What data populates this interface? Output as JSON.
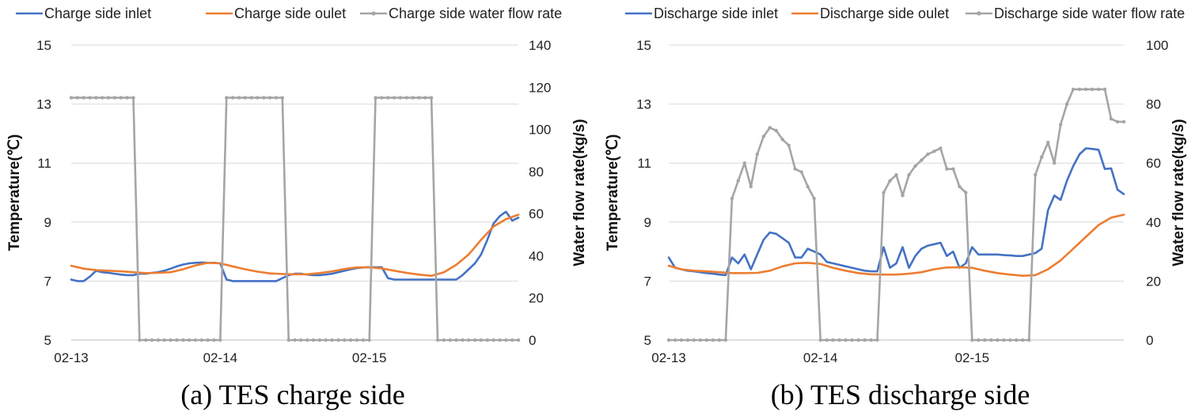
{
  "colors": {
    "inlet": "#4472C4",
    "outlet": "#ED7D31",
    "flow": "#A5A5A5",
    "grid": "#D9D9D9"
  },
  "chart_data": [
    {
      "type": "line",
      "caption": "(a) TES charge side",
      "ylabel": "Temperature(℃)",
      "y2label": "Water flow rate(kg/s)",
      "ylim": [
        5,
        15
      ],
      "yticks": [
        5,
        7,
        9,
        11,
        13,
        15
      ],
      "y2lim": [
        0,
        140
      ],
      "y2ticks": [
        0,
        20,
        40,
        60,
        80,
        100,
        120,
        140
      ],
      "xlabels": [
        "02-13",
        "02-14",
        "02-15"
      ],
      "xlabel_pos": [
        0,
        24,
        48
      ],
      "legend_position": "top",
      "grid": true,
      "series": [
        {
          "name": "Charge side inlet",
          "key": "inlet",
          "axis": "left",
          "markers": false,
          "x": [
            0,
            1,
            2,
            3,
            4,
            5,
            6,
            7,
            8,
            9,
            10,
            11,
            12,
            13,
            14,
            15,
            16,
            17,
            18,
            19,
            20,
            21,
            22,
            23,
            24,
            25,
            26,
            27,
            28,
            29,
            30,
            31,
            32,
            33,
            34,
            35,
            36,
            37,
            38,
            39,
            40,
            41,
            42,
            43,
            44,
            45,
            46,
            47,
            48,
            49,
            50,
            51,
            52,
            53,
            54,
            55,
            56,
            57,
            58,
            59,
            60,
            61,
            62,
            63,
            64,
            65,
            66,
            67,
            68,
            69,
            70,
            71,
            72
          ],
          "values": [
            7.05,
            7.0,
            7.0,
            7.15,
            7.35,
            7.3,
            7.28,
            7.25,
            7.22,
            7.2,
            7.2,
            7.25,
            7.25,
            7.28,
            7.3,
            7.35,
            7.42,
            7.5,
            7.56,
            7.6,
            7.62,
            7.63,
            7.62,
            7.62,
            7.6,
            7.05,
            7.0,
            7.0,
            7.0,
            7.0,
            7.0,
            7.0,
            7.0,
            7.0,
            7.1,
            7.2,
            7.25,
            7.25,
            7.22,
            7.2,
            7.2,
            7.22,
            7.25,
            7.3,
            7.35,
            7.4,
            7.44,
            7.46,
            7.47,
            7.47,
            7.47,
            7.1,
            7.05,
            7.05,
            7.05,
            7.05,
            7.05,
            7.05,
            7.05,
            7.05,
            7.05,
            7.05,
            7.05,
            7.2,
            7.4,
            7.6,
            7.9,
            8.4,
            8.95,
            9.2,
            9.35,
            9.05,
            9.15
          ]
        },
        {
          "name": "Charge side oulet",
          "key": "outlet",
          "axis": "left",
          "markers": false,
          "x": [
            0,
            2,
            4,
            6,
            8,
            10,
            12,
            14,
            16,
            18,
            20,
            22,
            24,
            26,
            28,
            30,
            32,
            34,
            36,
            38,
            40,
            42,
            44,
            46,
            48,
            50,
            52,
            54,
            56,
            58,
            60,
            62,
            64,
            66,
            68,
            70,
            72
          ],
          "values": [
            7.52,
            7.42,
            7.37,
            7.35,
            7.33,
            7.3,
            7.27,
            7.28,
            7.3,
            7.4,
            7.53,
            7.62,
            7.6,
            7.5,
            7.4,
            7.32,
            7.26,
            7.24,
            7.23,
            7.23,
            7.27,
            7.33,
            7.41,
            7.46,
            7.47,
            7.43,
            7.35,
            7.28,
            7.22,
            7.18,
            7.3,
            7.55,
            7.9,
            8.4,
            8.85,
            9.1,
            9.25
          ]
        },
        {
          "name": "Charge side water flow rate",
          "key": "flow",
          "axis": "right",
          "markers": true,
          "x": [
            0,
            1,
            2,
            3,
            4,
            5,
            6,
            7,
            8,
            9,
            10,
            11,
            12,
            13,
            14,
            15,
            16,
            17,
            18,
            19,
            20,
            21,
            22,
            23,
            24,
            25,
            26,
            27,
            28,
            29,
            30,
            31,
            32,
            33,
            34,
            35,
            36,
            37,
            38,
            39,
            40,
            41,
            42,
            43,
            44,
            45,
            46,
            47,
            48,
            49,
            50,
            51,
            52,
            53,
            54,
            55,
            56,
            57,
            58,
            59,
            60,
            61,
            62,
            63,
            64,
            65,
            66,
            67,
            68,
            69,
            70,
            71,
            72
          ],
          "values": [
            115,
            115,
            115,
            115,
            115,
            115,
            115,
            115,
            115,
            115,
            115,
            0,
            0,
            0,
            0,
            0,
            0,
            0,
            0,
            0,
            0,
            0,
            0,
            0,
            0,
            115,
            115,
            115,
            115,
            115,
            115,
            115,
            115,
            115,
            115,
            0,
            0,
            0,
            0,
            0,
            0,
            0,
            0,
            0,
            0,
            0,
            0,
            0,
            0,
            115,
            115,
            115,
            115,
            115,
            115,
            115,
            115,
            115,
            115,
            0,
            0,
            0,
            0,
            0,
            0,
            0,
            0,
            0,
            0,
            0,
            0,
            0,
            0
          ]
        }
      ]
    },
    {
      "type": "line",
      "caption": "(b) TES discharge side",
      "ylabel": "Temperature(℃)",
      "y2label": "Water flow rate(kg/s)",
      "ylim": [
        5,
        15
      ],
      "yticks": [
        5,
        7,
        9,
        11,
        13,
        15
      ],
      "y2lim": [
        0,
        100
      ],
      "y2ticks": [
        0,
        20,
        40,
        60,
        80,
        100
      ],
      "xlabels": [
        "02-13",
        "02-14",
        "02-15"
      ],
      "xlabel_pos": [
        0,
        24,
        48
      ],
      "legend_position": "top",
      "grid": true,
      "series": [
        {
          "name": "Discharge side inlet",
          "key": "inlet",
          "axis": "left",
          "markers": false,
          "x": [
            0,
            1,
            2,
            3,
            4,
            5,
            6,
            7,
            8,
            9,
            10,
            11,
            12,
            13,
            14,
            15,
            16,
            17,
            18,
            19,
            20,
            21,
            22,
            23,
            24,
            25,
            26,
            27,
            28,
            29,
            30,
            31,
            32,
            33,
            34,
            35,
            36,
            37,
            38,
            39,
            40,
            41,
            42,
            43,
            44,
            45,
            46,
            47,
            48,
            49,
            50,
            51,
            52,
            53,
            54,
            55,
            56,
            57,
            58,
            59,
            60,
            61,
            62,
            63,
            64,
            65,
            66,
            67,
            68,
            69,
            70,
            71,
            72
          ],
          "values": [
            7.8,
            7.45,
            7.4,
            7.35,
            7.33,
            7.3,
            7.27,
            7.25,
            7.22,
            7.2,
            7.8,
            7.6,
            7.9,
            7.4,
            7.9,
            8.4,
            8.65,
            8.6,
            8.45,
            8.3,
            7.8,
            7.8,
            8.1,
            8.0,
            7.9,
            7.65,
            7.6,
            7.55,
            7.5,
            7.45,
            7.4,
            7.35,
            7.33,
            7.33,
            8.15,
            7.45,
            7.6,
            8.15,
            7.45,
            7.85,
            8.1,
            8.2,
            8.25,
            8.3,
            7.85,
            8.0,
            7.45,
            7.6,
            8.15,
            7.9,
            7.9,
            7.9,
            7.9,
            7.88,
            7.87,
            7.85,
            7.85,
            7.9,
            7.95,
            8.1,
            9.4,
            9.9,
            9.75,
            10.4,
            10.9,
            11.3,
            11.5,
            11.48,
            11.45,
            10.8,
            10.82,
            10.1,
            9.95
          ]
        },
        {
          "name": "Discharge side oulet",
          "key": "outlet",
          "axis": "left",
          "markers": false,
          "x": [
            0,
            2,
            4,
            6,
            8,
            10,
            12,
            14,
            16,
            18,
            20,
            22,
            24,
            26,
            28,
            30,
            32,
            34,
            36,
            38,
            40,
            42,
            44,
            46,
            48,
            50,
            52,
            54,
            56,
            58,
            60,
            62,
            64,
            66,
            68,
            70,
            72
          ],
          "values": [
            7.52,
            7.4,
            7.35,
            7.33,
            7.3,
            7.27,
            7.27,
            7.28,
            7.35,
            7.5,
            7.6,
            7.62,
            7.58,
            7.45,
            7.35,
            7.27,
            7.23,
            7.22,
            7.22,
            7.25,
            7.3,
            7.4,
            7.46,
            7.47,
            7.45,
            7.35,
            7.27,
            7.22,
            7.18,
            7.2,
            7.4,
            7.7,
            8.1,
            8.5,
            8.9,
            9.15,
            9.25
          ]
        },
        {
          "name": "Discharge side water flow rate",
          "key": "flow",
          "axis": "right",
          "markers": true,
          "x": [
            0,
            1,
            2,
            3,
            4,
            5,
            6,
            7,
            8,
            9,
            10,
            11,
            12,
            13,
            14,
            15,
            16,
            17,
            18,
            19,
            20,
            21,
            22,
            23,
            24,
            25,
            26,
            27,
            28,
            29,
            30,
            31,
            32,
            33,
            34,
            35,
            36,
            37,
            38,
            39,
            40,
            41,
            42,
            43,
            44,
            45,
            46,
            47,
            48,
            49,
            50,
            51,
            52,
            53,
            54,
            55,
            56,
            57,
            58,
            59,
            60,
            61,
            62,
            63,
            64,
            65,
            66,
            67,
            68,
            69,
            70,
            71,
            72
          ],
          "values": [
            0,
            0,
            0,
            0,
            0,
            0,
            0,
            0,
            0,
            0,
            48,
            54,
            60,
            52,
            63,
            69,
            72,
            71,
            68,
            66,
            58,
            57,
            52,
            48,
            0,
            0,
            0,
            0,
            0,
            0,
            0,
            0,
            0,
            0,
            50,
            54,
            56,
            49,
            56,
            59,
            61,
            63,
            64,
            65,
            58,
            58,
            52,
            50,
            0,
            0,
            0,
            0,
            0,
            0,
            0,
            0,
            0,
            0,
            56,
            62,
            67,
            60,
            73,
            80,
            85,
            85,
            85,
            85,
            85,
            85,
            75,
            74,
            74
          ]
        }
      ]
    }
  ]
}
